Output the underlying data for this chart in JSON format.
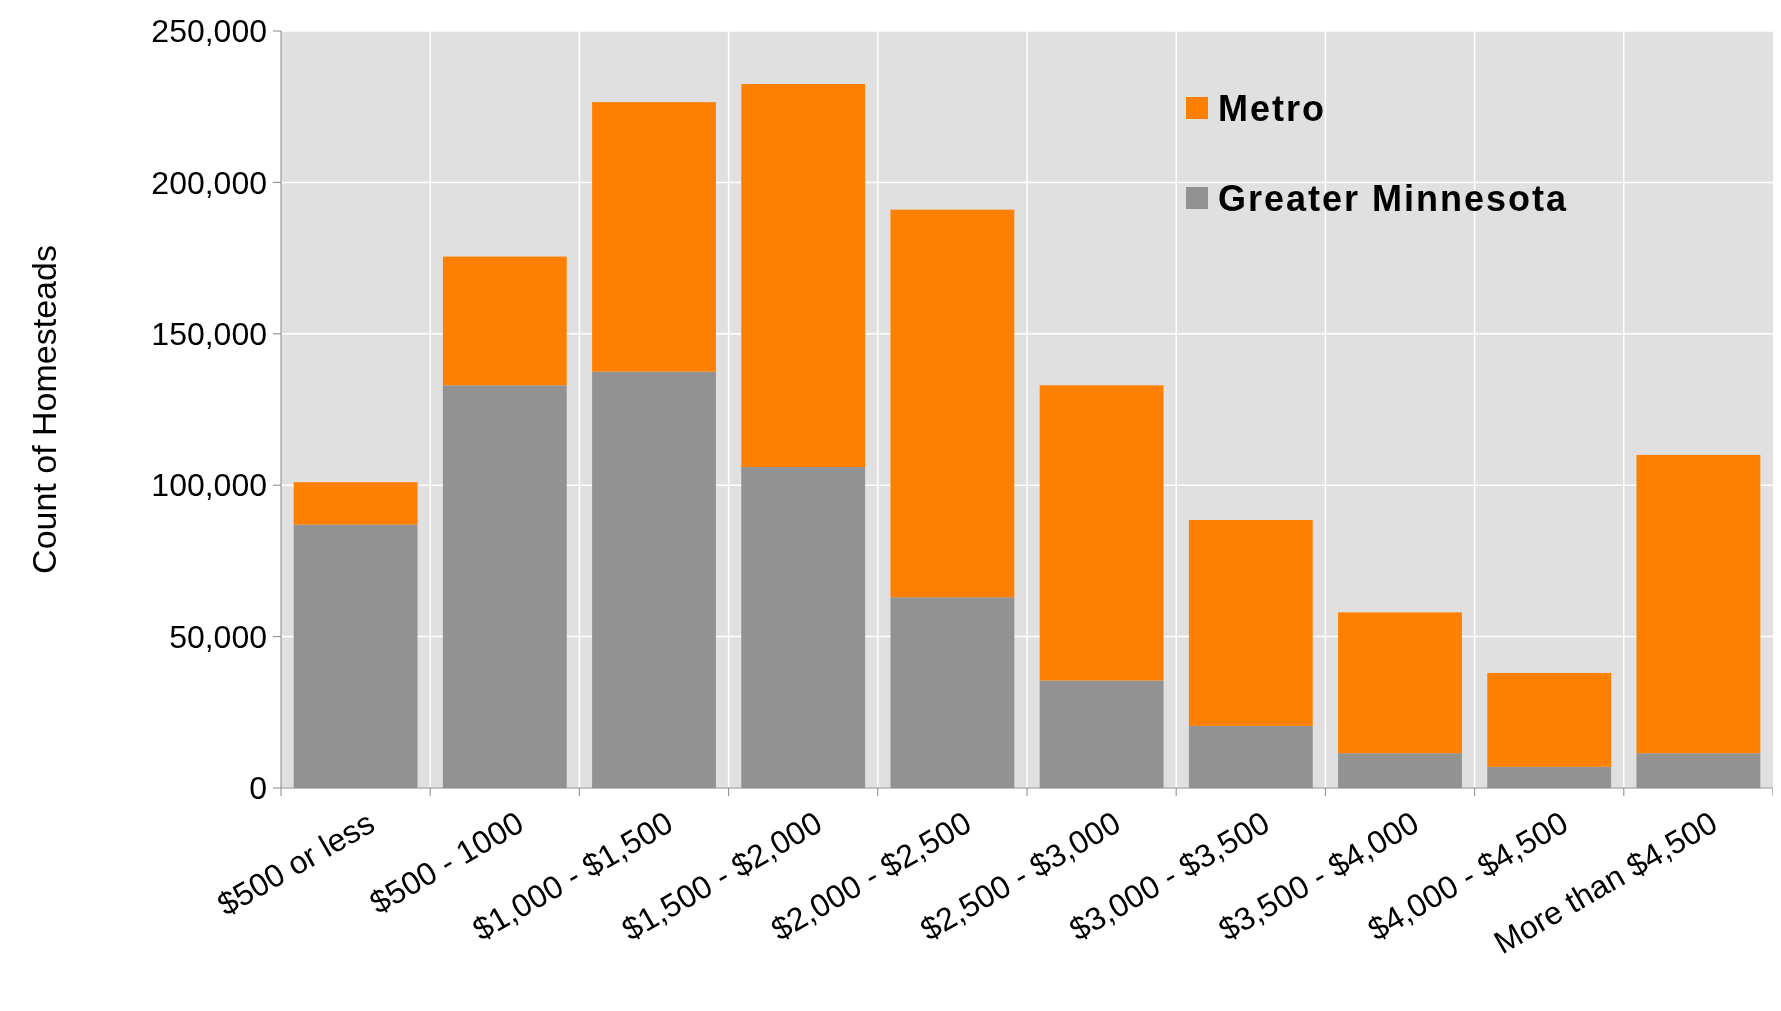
{
  "chart_data": {
    "type": "bar",
    "stacked": true,
    "ylabel": "Count of Homesteads",
    "categories": [
      "$500 or less",
      "$500 - 1000",
      "$1,000 - $1,500",
      "$1,500 - $2,000",
      "$2,000 - $2,500",
      "$2,500 - $3,000",
      "$3,000 - $3,500",
      "$3,500 - $4,000",
      "$4,000 - $4,500",
      "More than $4,500"
    ],
    "series": [
      {
        "name": "Greater Minnesota",
        "color": "#929292",
        "values": [
          87000,
          133000,
          137500,
          106000,
          63000,
          35500,
          20500,
          11500,
          7000,
          11500
        ]
      },
      {
        "name": "Metro",
        "color": "#ff8000",
        "values": [
          14000,
          42500,
          89000,
          126500,
          128000,
          97500,
          68000,
          46500,
          31000,
          98500
        ]
      }
    ],
    "ylim": [
      0,
      250000
    ],
    "yticks": [
      {
        "value": 0,
        "label": "0"
      },
      {
        "value": 50000,
        "label": "50,000"
      },
      {
        "value": 100000,
        "label": "100,000"
      },
      {
        "value": 150000,
        "label": "150,000"
      },
      {
        "value": 200000,
        "label": "200,000"
      },
      {
        "value": 250000,
        "label": "250,000"
      }
    ],
    "grid": true,
    "legend": "top right"
  }
}
